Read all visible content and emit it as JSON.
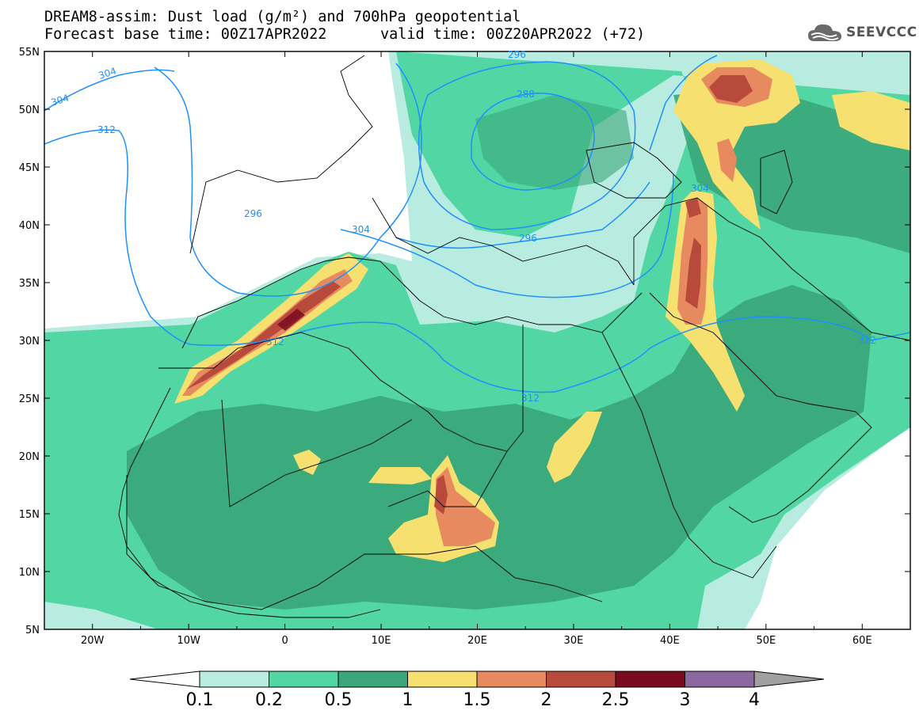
{
  "header": {
    "title_line1": "DREAM8-assim: Dust load (g/m²) and 700hPa geopotential",
    "title_line2_left": "Forecast base time: 00Z17APR2022",
    "title_line2_right": "valid time: 00Z20APR2022 (+72)",
    "logo_text": "SEEVCCC",
    "logo_icon": "cloud-icon"
  },
  "map": {
    "lat_labels": [
      "55N",
      "50N",
      "45N",
      "40N",
      "35N",
      "30N",
      "25N",
      "20N",
      "15N",
      "10N",
      "5N"
    ],
    "lon_labels": [
      "20W",
      "10W",
      "0",
      "10E",
      "20E",
      "30E",
      "40E",
      "50E",
      "60E"
    ],
    "lat_range": [
      5,
      55
    ],
    "lon_range": [
      -25,
      65
    ],
    "contour_line_color": "#1e90ff",
    "contour_labels": [
      "304",
      "304",
      "312",
      "296",
      "304",
      "296",
      "288",
      "296",
      "304",
      "312",
      "312",
      "312"
    ]
  },
  "colorbar": {
    "labels": [
      "0.1",
      "0.2",
      "0.5",
      "1",
      "1.5",
      "2",
      "2.5",
      "3",
      "4"
    ],
    "colors": [
      "#b8ece0",
      "#52d6a4",
      "#3aa77a",
      "#f5e070",
      "#e88a60",
      "#b84a3c",
      "#7a0a1e",
      "#8c68a0"
    ],
    "under_color": "#ffffff",
    "over_color": "#a0a0a0"
  }
}
